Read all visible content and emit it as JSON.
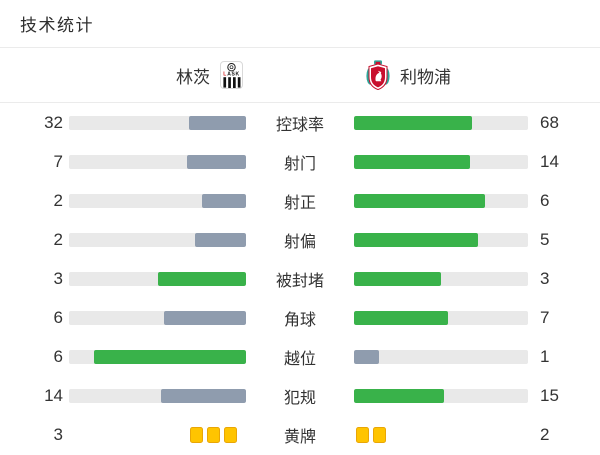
{
  "title": "技术统计",
  "teams": {
    "home": {
      "name": "林茨",
      "badge_icon": "lask-badge"
    },
    "away": {
      "name": "利物浦",
      "badge_icon": "liverpool-badge"
    }
  },
  "colors": {
    "win_bar": "#39b24a",
    "lose_bar": "#8f9cae",
    "track": "#e9e9e9",
    "yellow_card": "#ffc400",
    "yellow_card_border": "#e9a606",
    "text": "#333333",
    "divider": "#ebebeb"
  },
  "stats": {
    "rows": [
      {
        "label": "控球率",
        "home": 32,
        "away": 68,
        "type": "bar"
      },
      {
        "label": "射门",
        "home": 7,
        "away": 14,
        "type": "bar"
      },
      {
        "label": "射正",
        "home": 2,
        "away": 6,
        "type": "bar"
      },
      {
        "label": "射偏",
        "home": 2,
        "away": 5,
        "type": "bar"
      },
      {
        "label": "被封堵",
        "home": 3,
        "away": 3,
        "type": "bar"
      },
      {
        "label": "角球",
        "home": 6,
        "away": 7,
        "type": "bar"
      },
      {
        "label": "越位",
        "home": 6,
        "away": 1,
        "type": "bar"
      },
      {
        "label": "犯规",
        "home": 14,
        "away": 15,
        "type": "bar"
      },
      {
        "label": "黄牌",
        "home": 3,
        "away": 2,
        "type": "cards"
      }
    ]
  },
  "chart_data": {
    "type": "bar",
    "orientation": "horizontal-paired",
    "title": "技术统计",
    "categories": [
      "控球率",
      "射门",
      "射正",
      "射偏",
      "被封堵",
      "角球",
      "越位",
      "犯规",
      "黄牌"
    ],
    "series": [
      {
        "name": "林茨",
        "values": [
          32,
          7,
          2,
          2,
          3,
          6,
          6,
          14,
          3
        ]
      },
      {
        "name": "利物浦",
        "values": [
          68,
          14,
          6,
          5,
          3,
          7,
          1,
          15,
          2
        ]
      }
    ],
    "layout_hints": {
      "fill_rule": "bar fill = value / (home + away)",
      "color_rule": "higher value green #39b24a, lower slate #8f9cae, tie both green",
      "last_row_rendered_as": "yellow card icons"
    }
  }
}
